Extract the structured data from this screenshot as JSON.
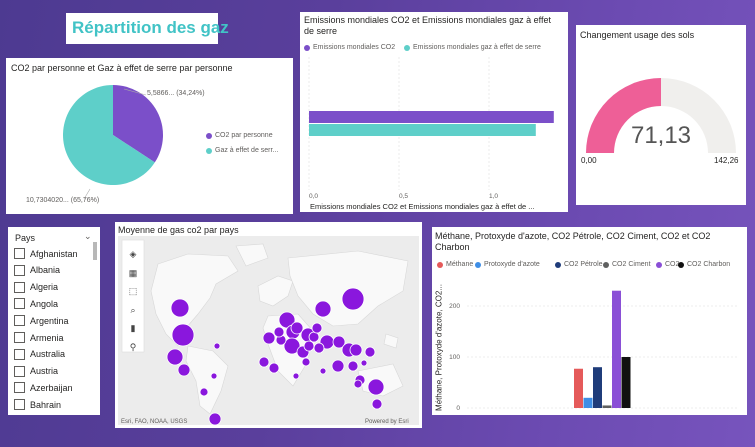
{
  "page": {
    "title": "Répartition des gaz"
  },
  "pie": {
    "title": "CO2 par personne et Gaz à effet de serre par personne",
    "slices": [
      {
        "name": "CO2 par personne",
        "value": 5.5866,
        "percent": 34.24,
        "label": "5,5866... (34,24%)",
        "color": "#7b4fc9"
      },
      {
        "name": "Gaz à effet de serr...",
        "value": 10.7304,
        "percent": 65.76,
        "label": "10,7304020... (65,76%)",
        "color": "#5ecfc9"
      }
    ]
  },
  "emissions": {
    "title": "Emissions mondiales CO2 et Emissions mondiales gaz à effet de serre",
    "legend": [
      "Emissions mondiales CO2",
      "Emissions mondiales gaz à effet de serre"
    ],
    "colors": [
      "#7b4fc9",
      "#5ecfc9"
    ],
    "values": [
      1.36,
      1.26
    ],
    "xticks": [
      "0,0",
      "0,5",
      "1,0"
    ],
    "xlabel": "Emissions mondiales CO2 et Emissions mondiales gaz à effet de ..."
  },
  "gauge": {
    "title": "Changement usage des sols",
    "value": 71.13,
    "value_label": "71,13",
    "min_label": "0,00",
    "max_label": "142,26",
    "fill_color": "#ee5f97",
    "track_color": "#f0efed"
  },
  "slicer": {
    "title": "Pays",
    "items": [
      "Afghanistan",
      "Albania",
      "Algeria",
      "Angola",
      "Argentina",
      "Armenia",
      "Australia",
      "Austria",
      "Azerbaijan",
      "Bahrain"
    ]
  },
  "map": {
    "title": "Moyenne de gas  co2 par pays",
    "attribution": "Esri, FAO, NOAA, USGS",
    "powered": "Powered by Esri",
    "tools": [
      "layers-icon",
      "grid-select-icon",
      "rect-select-icon",
      "search-icon",
      "histogram-icon",
      "pin-icon"
    ]
  },
  "bars": {
    "title": "Méthane, Protoxyde d'azote, CO2 Pétrole, CO2 Ciment, CO2 et CO2 Charbon",
    "ylabel": "Méthane, Protoxyde d'azote, CO2...",
    "yticks": [
      "200",
      "100",
      "0"
    ],
    "ylim": [
      0,
      240
    ],
    "series": [
      {
        "name": "Méthane",
        "color": "#e55a5a",
        "value": 77
      },
      {
        "name": "Protoxyde d'azote",
        "color": "#3e8ee6",
        "value": 20
      },
      {
        "name": "CO2 Pétrole",
        "color": "#1f3c7a",
        "value": 80
      },
      {
        "name": "CO2 Ciment",
        "color": "#5f6060",
        "value": 5
      },
      {
        "name": "CO2",
        "color": "#8a4fd6",
        "value": 230
      },
      {
        "name": "CO2 Charbon",
        "color": "#111111",
        "value": 100
      }
    ]
  }
}
